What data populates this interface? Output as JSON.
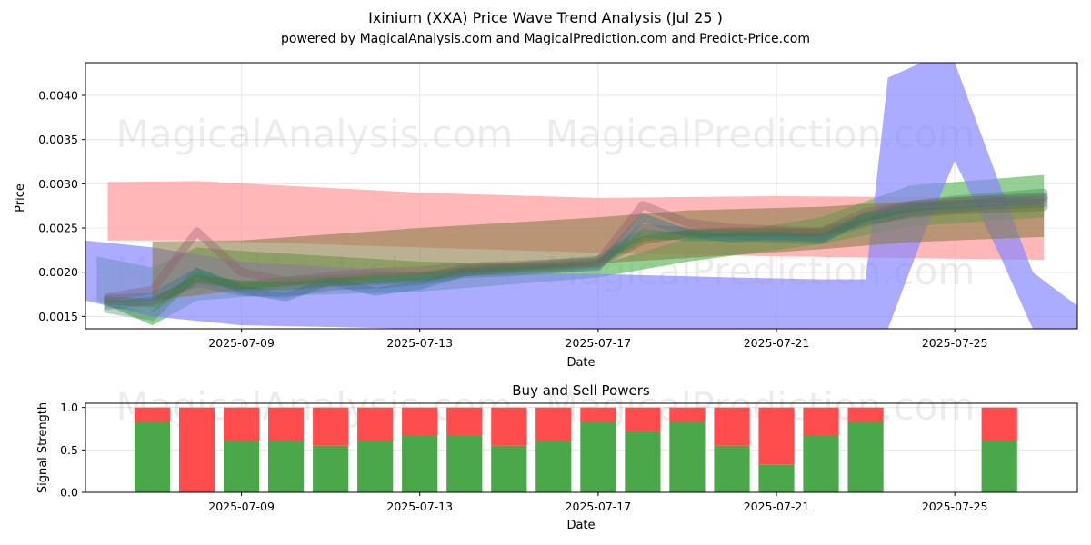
{
  "title": "Ixinium (XXA) Price Wave Trend Analysis (Jul 25 )",
  "subtitle": "powered by MagicalAnalysis.com and MagicalPrediction.com and Predict-Price.com",
  "watermarks": [
    "MagicalAnalysis.com",
    "MagicalPrediction.com"
  ],
  "colors": {
    "red_band": "#ff9999",
    "green_band": "#66bb66",
    "blue_band": "#8888ff",
    "olive_band": "#8b7d4a",
    "buy": "#4aa84a",
    "sell": "#ff4c4c",
    "grid": "#e6e6e6"
  },
  "chart_data": [
    {
      "type": "area",
      "title": "",
      "xlabel": "Date",
      "ylabel": "Price",
      "xlim": [
        "2025-07-05 12:00",
        "2025-07-27 18:00"
      ],
      "ylim": [
        0.00136,
        0.00437
      ],
      "x_ticks": [
        "2025-07-09",
        "2025-07-13",
        "2025-07-17",
        "2025-07-21",
        "2025-07-25"
      ],
      "y_ticks": [
        "0.0015",
        "0.0020",
        "0.0025",
        "0.0030",
        "0.0035",
        "0.0040"
      ],
      "grid": true,
      "series": [
        {
          "name": "red band",
          "color_key": "red_band",
          "x": [
            "2025-07-06",
            "2025-07-08",
            "2025-07-13",
            "2025-07-17",
            "2025-07-21",
            "2025-07-27"
          ],
          "upper": [
            0.00302,
            0.00303,
            0.0029,
            0.00284,
            0.00286,
            0.00284
          ],
          "lower": [
            0.00236,
            0.00236,
            0.00228,
            0.00222,
            0.00218,
            0.00214
          ]
        },
        {
          "name": "green band",
          "color_key": "green_band",
          "x": [
            "2025-07-05 18:00",
            "2025-07-07",
            "2025-07-08",
            "2025-07-09",
            "2025-07-13",
            "2025-07-17",
            "2025-07-19",
            "2025-07-22",
            "2025-07-24",
            "2025-07-27"
          ],
          "upper": [
            0.00218,
            0.00205,
            0.00228,
            0.00224,
            0.00212,
            0.00208,
            0.00238,
            0.00262,
            0.00298,
            0.0031
          ],
          "lower": [
            0.00168,
            0.0014,
            0.00168,
            0.00172,
            0.00178,
            0.00194,
            0.00212,
            0.00232,
            0.00252,
            0.00262
          ]
        },
        {
          "name": "blue band",
          "color_key": "blue_band",
          "x": [
            "2025-07-05 12:00",
            "2025-07-07",
            "2025-07-09",
            "2025-07-13",
            "2025-07-17",
            "2025-07-20",
            "2025-07-22",
            "2025-07-23",
            "2025-07-23 12:00",
            "2025-07-24 06:00",
            "2025-07-25",
            "2025-07-26",
            "2025-07-26 18:00",
            "2025-07-27 18:00"
          ],
          "upper": [
            0.00236,
            0.00228,
            0.00212,
            0.002,
            0.00198,
            0.00194,
            0.00192,
            0.00192,
            0.0042,
            0.00437,
            0.00437,
            0.003,
            0.002,
            0.00162
          ],
          "lower": [
            0.00168,
            0.0015,
            0.0014,
            0.00136,
            0.00136,
            0.00136,
            0.00136,
            0.00136,
            0.00136,
            0.00236,
            0.00326,
            0.0022,
            0.00136,
            0.00136
          ]
        },
        {
          "name": "olive band",
          "color_key": "olive_band",
          "x": [
            "2025-07-07",
            "2025-07-09",
            "2025-07-13",
            "2025-07-17",
            "2025-07-19",
            "2025-07-22",
            "2025-07-24",
            "2025-07-27"
          ],
          "upper": [
            0.00235,
            0.00236,
            0.0025,
            0.00262,
            0.0027,
            0.00274,
            0.0028,
            0.00284
          ],
          "lower": [
            0.00168,
            0.0018,
            0.00196,
            0.0021,
            0.00216,
            0.00226,
            0.00234,
            0.0024
          ]
        }
      ],
      "wave_lines": {
        "x": [
          "2025-07-06",
          "2025-07-07",
          "2025-07-08",
          "2025-07-09",
          "2025-07-10",
          "2025-07-11",
          "2025-07-12",
          "2025-07-13",
          "2025-07-14",
          "2025-07-15",
          "2025-07-16",
          "2025-07-17",
          "2025-07-18",
          "2025-07-19",
          "2025-07-20",
          "2025-07-21",
          "2025-07-22",
          "2025-07-23",
          "2025-07-24",
          "2025-07-25",
          "2025-07-26",
          "2025-07-27"
        ],
        "lines": [
          {
            "color": "#2e8b2e",
            "values": [
              0.00165,
              0.0016,
              0.00195,
              0.00185,
              0.0019,
              0.00192,
              0.00195,
              0.00196,
              0.00202,
              0.00205,
              0.00208,
              0.00212,
              0.0024,
              0.00242,
              0.00245,
              0.00244,
              0.00246,
              0.00262,
              0.00272,
              0.0028,
              0.00283,
              0.00286
            ]
          },
          {
            "color": "#2a6f97",
            "values": [
              0.0017,
              0.00172,
              0.002,
              0.0018,
              0.00172,
              0.0019,
              0.00178,
              0.00185,
              0.002,
              0.00202,
              0.00204,
              0.00206,
              0.00262,
              0.00244,
              0.00238,
              0.00242,
              0.00238,
              0.00262,
              0.00274,
              0.00276,
              0.0028,
              0.00282
            ]
          },
          {
            "color": "#4a6e8a",
            "values": [
              0.00162,
              0.00168,
              0.00188,
              0.00178,
              0.00176,
              0.00184,
              0.00186,
              0.0019,
              0.00198,
              0.002,
              0.00203,
              0.00208,
              0.0025,
              0.00246,
              0.00242,
              0.0024,
              0.0024,
              0.00256,
              0.00268,
              0.00272,
              0.00276,
              0.00278
            ]
          },
          {
            "color": "#556b2f",
            "values": [
              0.00168,
              0.00165,
              0.00192,
              0.00186,
              0.00184,
              0.00188,
              0.00192,
              0.00194,
              0.002,
              0.00204,
              0.00206,
              0.0021,
              0.00236,
              0.00244,
              0.00246,
              0.00246,
              0.00244,
              0.00258,
              0.00266,
              0.0027,
              0.00272,
              0.00274
            ]
          },
          {
            "color": "#3a7f5a",
            "values": [
              0.00158,
              0.0015,
              0.002,
              0.00182,
              0.00186,
              0.0019,
              0.0019,
              0.00192,
              0.00204,
              0.00206,
              0.0021,
              0.00214,
              0.00244,
              0.0024,
              0.0024,
              0.00238,
              0.00236,
              0.00264,
              0.00276,
              0.00282,
              0.00286,
              0.0029
            ]
          },
          {
            "color": "#8b5a6a",
            "values": [
              0.00172,
              0.0018,
              0.00246,
              0.002,
              0.0019,
              0.00196,
              0.002,
              0.00202,
              0.00206,
              0.00208,
              0.0021,
              0.00212,
              0.00276,
              0.00256,
              0.0025,
              0.00248,
              0.00246,
              0.00268,
              0.00276,
              0.0028,
              0.00282,
              0.00284
            ]
          }
        ]
      }
    },
    {
      "type": "bar",
      "title": "Buy and Sell Powers",
      "xlabel": "Date",
      "ylabel": "Signal Strength",
      "xlim": [
        "2025-07-05 12:00",
        "2025-07-27 18:00"
      ],
      "ylim": [
        0,
        1.05
      ],
      "x_ticks": [
        "2025-07-09",
        "2025-07-13",
        "2025-07-17",
        "2025-07-21",
        "2025-07-25"
      ],
      "y_ticks": [
        "0.0",
        "0.5",
        "1.0"
      ],
      "categories": [
        "2025-07-07",
        "2025-07-08",
        "2025-07-09",
        "2025-07-10",
        "2025-07-11",
        "2025-07-12",
        "2025-07-13",
        "2025-07-14",
        "2025-07-15",
        "2025-07-16",
        "2025-07-17",
        "2025-07-18",
        "2025-07-19",
        "2025-07-20",
        "2025-07-21",
        "2025-07-22",
        "2025-07-23",
        "2025-07-26"
      ],
      "series": [
        {
          "name": "Buy",
          "color_key": "buy",
          "values": [
            0.83,
            0.0,
            0.6,
            0.6,
            0.55,
            0.6,
            0.67,
            0.67,
            0.55,
            0.6,
            0.83,
            0.72,
            0.83,
            0.55,
            0.33,
            0.67,
            0.83,
            0.6
          ]
        },
        {
          "name": "Sell",
          "color_key": "sell",
          "values": [
            0.17,
            1.0,
            0.4,
            0.4,
            0.45,
            0.4,
            0.33,
            0.33,
            0.45,
            0.4,
            0.17,
            0.28,
            0.17,
            0.45,
            0.67,
            0.33,
            0.17,
            0.4
          ]
        }
      ]
    }
  ]
}
